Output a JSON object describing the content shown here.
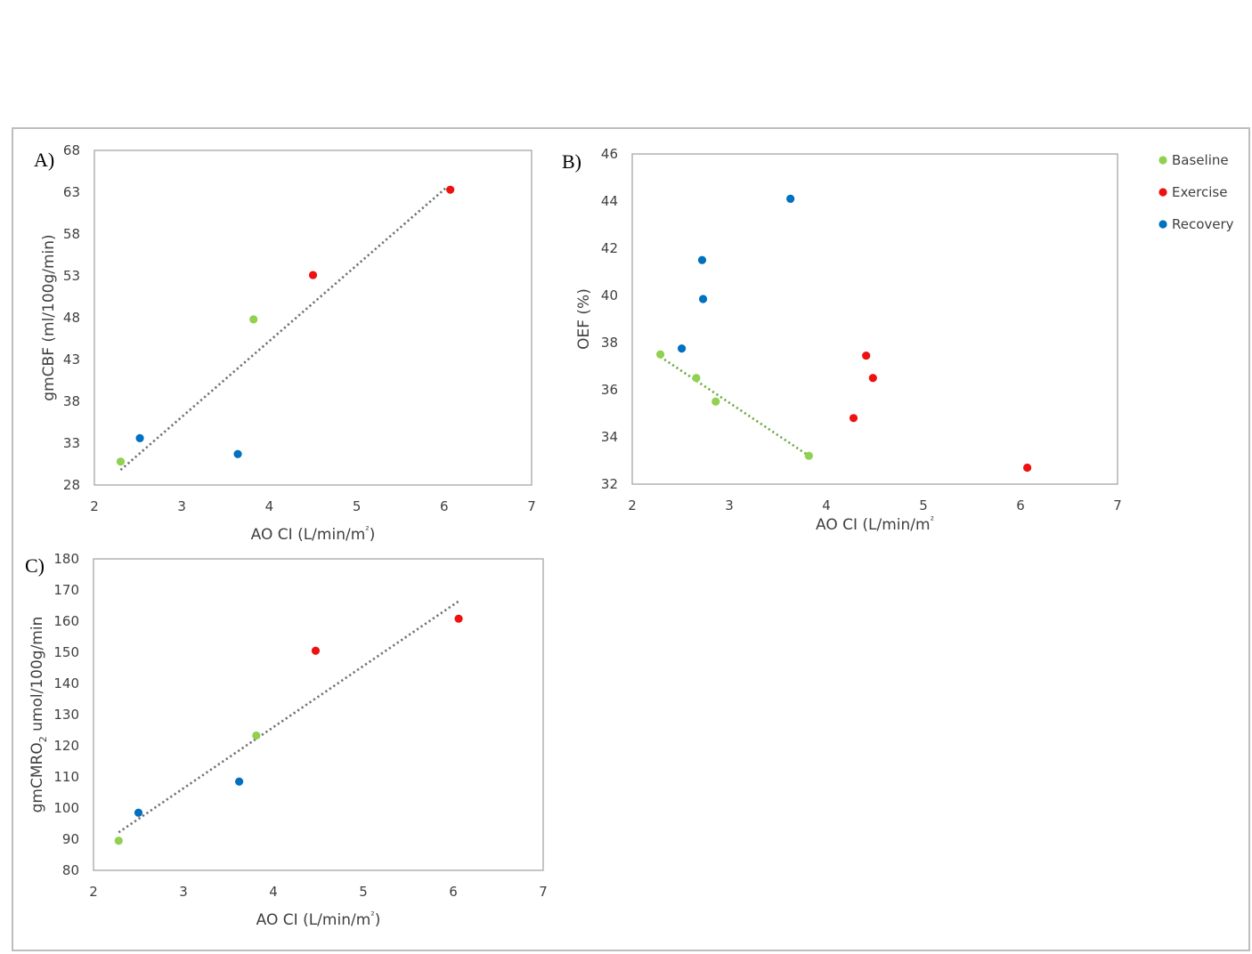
{
  "colors": {
    "Baseline": "#92d050",
    "Exercise": "#ee1111",
    "Recovery": "#0070c0",
    "trend_gray": "#707070",
    "trend_green": "#70ad47"
  },
  "legend": [
    {
      "label": "Baseline",
      "color": "#92d050"
    },
    {
      "label": "Exercise",
      "color": "#ee1111"
    },
    {
      "label": "Recovery",
      "color": "#0070c0"
    }
  ],
  "chart_data": [
    {
      "id": "A",
      "type": "scatter",
      "panel_label": "A)",
      "title": "",
      "xlabel": "AO CI (L/min/m²)",
      "ylabel": "gmCBF (ml/100g/min)",
      "xlim": [
        2,
        7
      ],
      "ylim": [
        28,
        68
      ],
      "xticks": [
        2,
        3,
        4,
        5,
        6,
        7
      ],
      "yticks": [
        28,
        33,
        38,
        43,
        48,
        53,
        58,
        63,
        68
      ],
      "series": [
        {
          "name": "Baseline",
          "points": [
            [
              2.3,
              30.8
            ],
            [
              3.82,
              47.8
            ]
          ]
        },
        {
          "name": "Exercise",
          "points": [
            [
              4.5,
              53.1
            ],
            [
              6.07,
              63.3
            ]
          ]
        },
        {
          "name": "Recovery",
          "points": [
            [
              2.52,
              33.6
            ],
            [
              3.64,
              31.7
            ]
          ]
        }
      ],
      "trendlines": [
        {
          "color_key": "trend_gray",
          "x1": 2.3,
          "y1": 29.8,
          "x2": 6.03,
          "y2": 63.6
        }
      ]
    },
    {
      "id": "B",
      "type": "scatter",
      "panel_label": "B)",
      "title": "",
      "xlabel": "AO CI (L/min/m²",
      "ylabel": "OEF (%)",
      "xlim": [
        2,
        7
      ],
      "ylim": [
        32,
        46
      ],
      "xticks": [
        2,
        3,
        4,
        5,
        6,
        7
      ],
      "yticks": [
        32,
        34,
        36,
        38,
        40,
        42,
        44,
        46
      ],
      "series": [
        {
          "name": "Baseline",
          "points": [
            [
              2.29,
              37.5
            ],
            [
              2.66,
              36.5
            ],
            [
              2.86,
              35.5
            ],
            [
              3.82,
              33.2
            ]
          ]
        },
        {
          "name": "Exercise",
          "points": [
            [
              4.28,
              34.8
            ],
            [
              4.41,
              37.45
            ],
            [
              4.48,
              36.5
            ],
            [
              6.07,
              32.7
            ]
          ]
        },
        {
          "name": "Recovery",
          "points": [
            [
              2.51,
              37.75
            ],
            [
              2.72,
              41.5
            ],
            [
              2.73,
              39.85
            ],
            [
              3.63,
              44.1
            ]
          ]
        }
      ],
      "trendlines": [
        {
          "color_key": "trend_green",
          "x1": 2.29,
          "y1": 37.4,
          "x2": 3.82,
          "y2": 33.2
        }
      ]
    },
    {
      "id": "C",
      "type": "scatter",
      "panel_label": "C)",
      "title": "",
      "xlabel": "AO CI (L/min/m²)",
      "ylabel": "gmCMRO",
      "ylabel_sub": "2",
      "ylabel_rest": " umol/100g/min",
      "xlim": [
        2,
        7
      ],
      "ylim": [
        80,
        180
      ],
      "xticks": [
        2,
        3,
        4,
        5,
        6,
        7
      ],
      "yticks": [
        80,
        90,
        100,
        110,
        120,
        130,
        140,
        150,
        160,
        170,
        180
      ],
      "series": [
        {
          "name": "Baseline",
          "points": [
            [
              2.28,
              89.5
            ],
            [
              3.81,
              123.3
            ]
          ]
        },
        {
          "name": "Exercise",
          "points": [
            [
              4.47,
              150.5
            ],
            [
              6.06,
              160.8
            ]
          ]
        },
        {
          "name": "Recovery",
          "points": [
            [
              2.5,
              98.5
            ],
            [
              3.62,
              108.5
            ]
          ]
        }
      ],
      "trendlines": [
        {
          "color_key": "trend_gray",
          "x1": 2.28,
          "y1": 92.2,
          "x2": 6.06,
          "y2": 166.4
        }
      ]
    }
  ]
}
